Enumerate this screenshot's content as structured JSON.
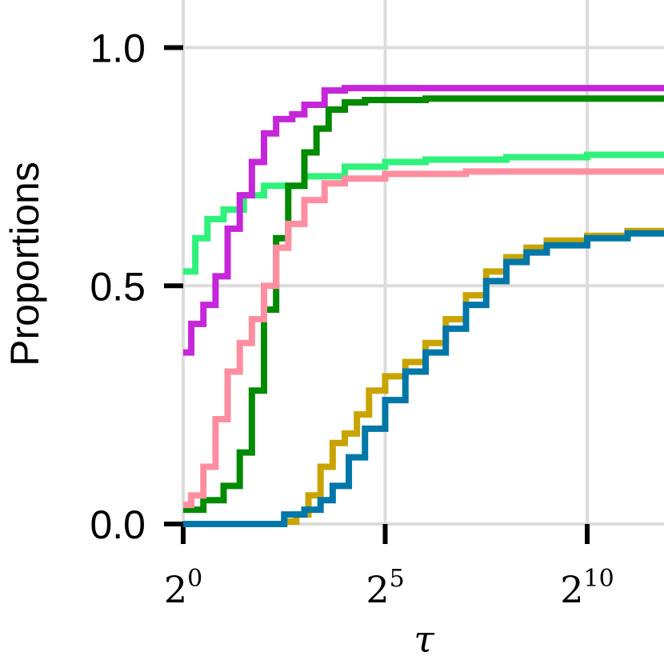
{
  "chart_data": {
    "type": "line",
    "xlabel": "τ",
    "ylabel": "Proportions",
    "x_scale": "log2",
    "xlim": [
      0,
      12
    ],
    "ylim": [
      0,
      1.1
    ],
    "grid": true,
    "legend": "none",
    "x_ticks": [
      {
        "base": "2",
        "exp": "0",
        "value": 0
      },
      {
        "base": "2",
        "exp": "5",
        "value": 5
      },
      {
        "base": "2",
        "exp": "10",
        "value": 10
      }
    ],
    "y_ticks": [
      {
        "label": "0.0",
        "value": 0.0
      },
      {
        "label": "0.5",
        "value": 0.5
      },
      {
        "label": "1.0",
        "value": 1.0
      }
    ],
    "series": [
      {
        "color": "#2ef27a",
        "points": [
          [
            0,
            0.53
          ],
          [
            0.3,
            0.6
          ],
          [
            0.6,
            0.64
          ],
          [
            1,
            0.66
          ],
          [
            1.5,
            0.69
          ],
          [
            2,
            0.71
          ],
          [
            3,
            0.73
          ],
          [
            4,
            0.75
          ],
          [
            5,
            0.76
          ],
          [
            6,
            0.765
          ],
          [
            8,
            0.77
          ],
          [
            10,
            0.775
          ],
          [
            12,
            0.775
          ]
        ]
      },
      {
        "color": "#c526d9",
        "points": [
          [
            0,
            0.36
          ],
          [
            0.2,
            0.42
          ],
          [
            0.5,
            0.46
          ],
          [
            0.8,
            0.52
          ],
          [
            1.1,
            0.62
          ],
          [
            1.4,
            0.69
          ],
          [
            1.7,
            0.76
          ],
          [
            2,
            0.82
          ],
          [
            2.3,
            0.85
          ],
          [
            2.7,
            0.86
          ],
          [
            3,
            0.88
          ],
          [
            3.5,
            0.91
          ],
          [
            4,
            0.915
          ],
          [
            6,
            0.915
          ],
          [
            12,
            0.915
          ]
        ]
      },
      {
        "color": "#008a00",
        "points": [
          [
            0,
            0.03
          ],
          [
            0.5,
            0.05
          ],
          [
            1,
            0.08
          ],
          [
            1.4,
            0.15
          ],
          [
            1.7,
            0.28
          ],
          [
            2,
            0.45
          ],
          [
            2.3,
            0.6
          ],
          [
            2.6,
            0.71
          ],
          [
            3,
            0.78
          ],
          [
            3.3,
            0.83
          ],
          [
            3.6,
            0.87
          ],
          [
            4,
            0.885
          ],
          [
            4.5,
            0.89
          ],
          [
            6,
            0.893
          ],
          [
            12,
            0.895
          ]
        ]
      },
      {
        "color": "#ff8fa0",
        "points": [
          [
            0,
            0.04
          ],
          [
            0.2,
            0.06
          ],
          [
            0.5,
            0.12
          ],
          [
            0.8,
            0.22
          ],
          [
            1.1,
            0.32
          ],
          [
            1.4,
            0.38
          ],
          [
            1.7,
            0.43
          ],
          [
            2,
            0.5
          ],
          [
            2.3,
            0.58
          ],
          [
            2.6,
            0.63
          ],
          [
            3,
            0.68
          ],
          [
            3.5,
            0.715
          ],
          [
            4,
            0.725
          ],
          [
            5,
            0.735
          ],
          [
            7,
            0.74
          ],
          [
            12,
            0.745
          ]
        ]
      },
      {
        "color": "#c9a400",
        "points": [
          [
            0,
            0
          ],
          [
            2,
            0
          ],
          [
            2.5,
            0.005
          ],
          [
            2.8,
            0.02
          ],
          [
            3.1,
            0.06
          ],
          [
            3.4,
            0.12
          ],
          [
            3.7,
            0.17
          ],
          [
            4,
            0.19
          ],
          [
            4.3,
            0.23
          ],
          [
            4.6,
            0.28
          ],
          [
            5,
            0.31
          ],
          [
            5.5,
            0.34
          ],
          [
            6,
            0.38
          ],
          [
            6.5,
            0.43
          ],
          [
            7,
            0.48
          ],
          [
            7.5,
            0.53
          ],
          [
            8,
            0.56
          ],
          [
            8.5,
            0.58
          ],
          [
            9,
            0.595
          ],
          [
            10,
            0.605
          ],
          [
            11,
            0.615
          ],
          [
            12,
            0.62
          ]
        ]
      },
      {
        "color": "#0077a8",
        "points": [
          [
            0,
            0
          ],
          [
            2.2,
            0
          ],
          [
            2.5,
            0.02
          ],
          [
            3,
            0.03
          ],
          [
            3.4,
            0.05
          ],
          [
            3.7,
            0.08
          ],
          [
            4.1,
            0.14
          ],
          [
            4.5,
            0.2
          ],
          [
            5,
            0.26
          ],
          [
            5.5,
            0.32
          ],
          [
            6,
            0.36
          ],
          [
            6.5,
            0.41
          ],
          [
            7,
            0.46
          ],
          [
            7.5,
            0.51
          ],
          [
            8,
            0.55
          ],
          [
            8.5,
            0.57
          ],
          [
            9,
            0.585
          ],
          [
            10,
            0.6
          ],
          [
            11,
            0.61
          ],
          [
            12,
            0.615
          ]
        ]
      }
    ]
  }
}
